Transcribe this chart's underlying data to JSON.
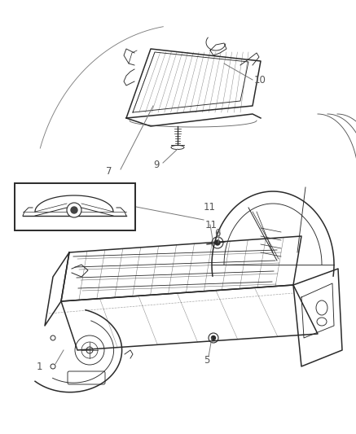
{
  "bg_color": "#ffffff",
  "lc": "#2a2a2a",
  "lc_gray": "#888888",
  "lc_light": "#aaaaaa",
  "lw_main": 1.1,
  "lw_thin": 0.65,
  "lw_ann": 0.65,
  "label_fs": 8.5,
  "label_color": "#555555"
}
